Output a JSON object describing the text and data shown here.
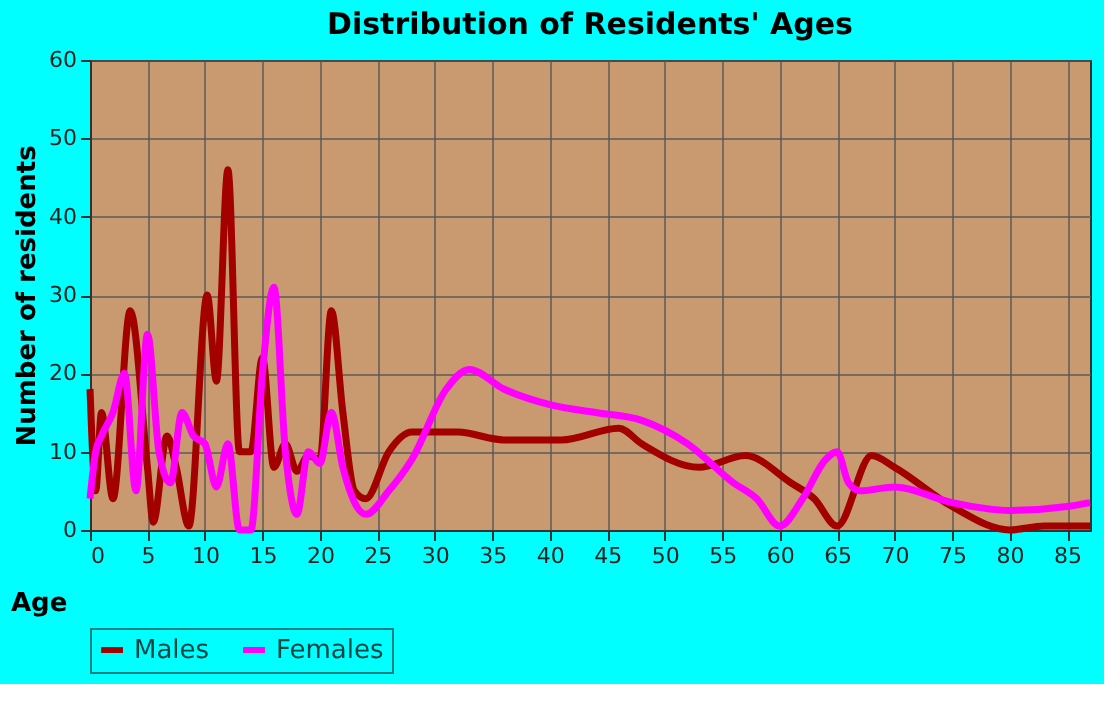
{
  "chart_data": {
    "type": "line",
    "title": "Distribution of Residents' Ages",
    "xlabel": "Age",
    "ylabel": "Number of residents",
    "xlim": [
      0,
      87
    ],
    "xticks": [
      0,
      5,
      10,
      15,
      20,
      25,
      30,
      35,
      40,
      45,
      50,
      55,
      60,
      65,
      70,
      75,
      80,
      85
    ],
    "ylim": [
      0,
      60
    ],
    "yticks": [
      0,
      10,
      20,
      30,
      40,
      50,
      60
    ],
    "grid": true,
    "legend": "bottom",
    "line_style": "solid",
    "marker": "none",
    "series": [
      {
        "name": "Males",
        "color": "#a30000",
        "x": [
          0,
          0.5,
          1,
          2,
          3.5,
          5,
          5.5,
          6.7,
          7.5,
          8.6,
          10.2,
          11,
          12,
          13,
          14,
          15,
          16,
          17,
          18,
          19,
          20,
          21,
          22,
          23,
          24,
          26,
          28,
          32,
          36,
          41,
          46,
          48,
          53,
          57,
          61,
          63,
          65,
          68,
          70,
          75,
          80,
          83,
          87
        ],
        "values": [
          18,
          5,
          15,
          4,
          28,
          8,
          1,
          12,
          8,
          0.5,
          30,
          19,
          46,
          10,
          10,
          22,
          8,
          11,
          7.5,
          9.5,
          9,
          28,
          15,
          5,
          4,
          10,
          12.5,
          12.5,
          11.5,
          11.5,
          13,
          11,
          8,
          9.5,
          6,
          4,
          0.5,
          9.5,
          8,
          3,
          0,
          0.5,
          0.5
        ]
      },
      {
        "name": "Females",
        "color": "#ff00ff",
        "x": [
          0,
          0.5,
          1,
          2,
          3,
          4,
          5,
          6,
          7,
          8,
          9,
          10,
          11,
          12,
          13,
          14,
          15,
          16,
          17,
          18,
          19,
          20,
          21,
          22,
          24,
          26,
          28,
          31,
          33,
          36,
          40,
          44,
          48,
          52,
          56,
          58,
          60,
          62,
          64,
          65,
          66,
          67,
          70,
          75,
          80,
          85,
          87
        ],
        "values": [
          4,
          10,
          12,
          15,
          20,
          5,
          25,
          10,
          6,
          15,
          12,
          11,
          5.5,
          11,
          0,
          0,
          20,
          31,
          10,
          2,
          10,
          8.5,
          15,
          8,
          2,
          5,
          9,
          18,
          20.5,
          18,
          16,
          15,
          14,
          11,
          6,
          4,
          0.5,
          4,
          9,
          10,
          6,
          5,
          5.5,
          3.5,
          2.5,
          3,
          3.5
        ]
      }
    ]
  }
}
